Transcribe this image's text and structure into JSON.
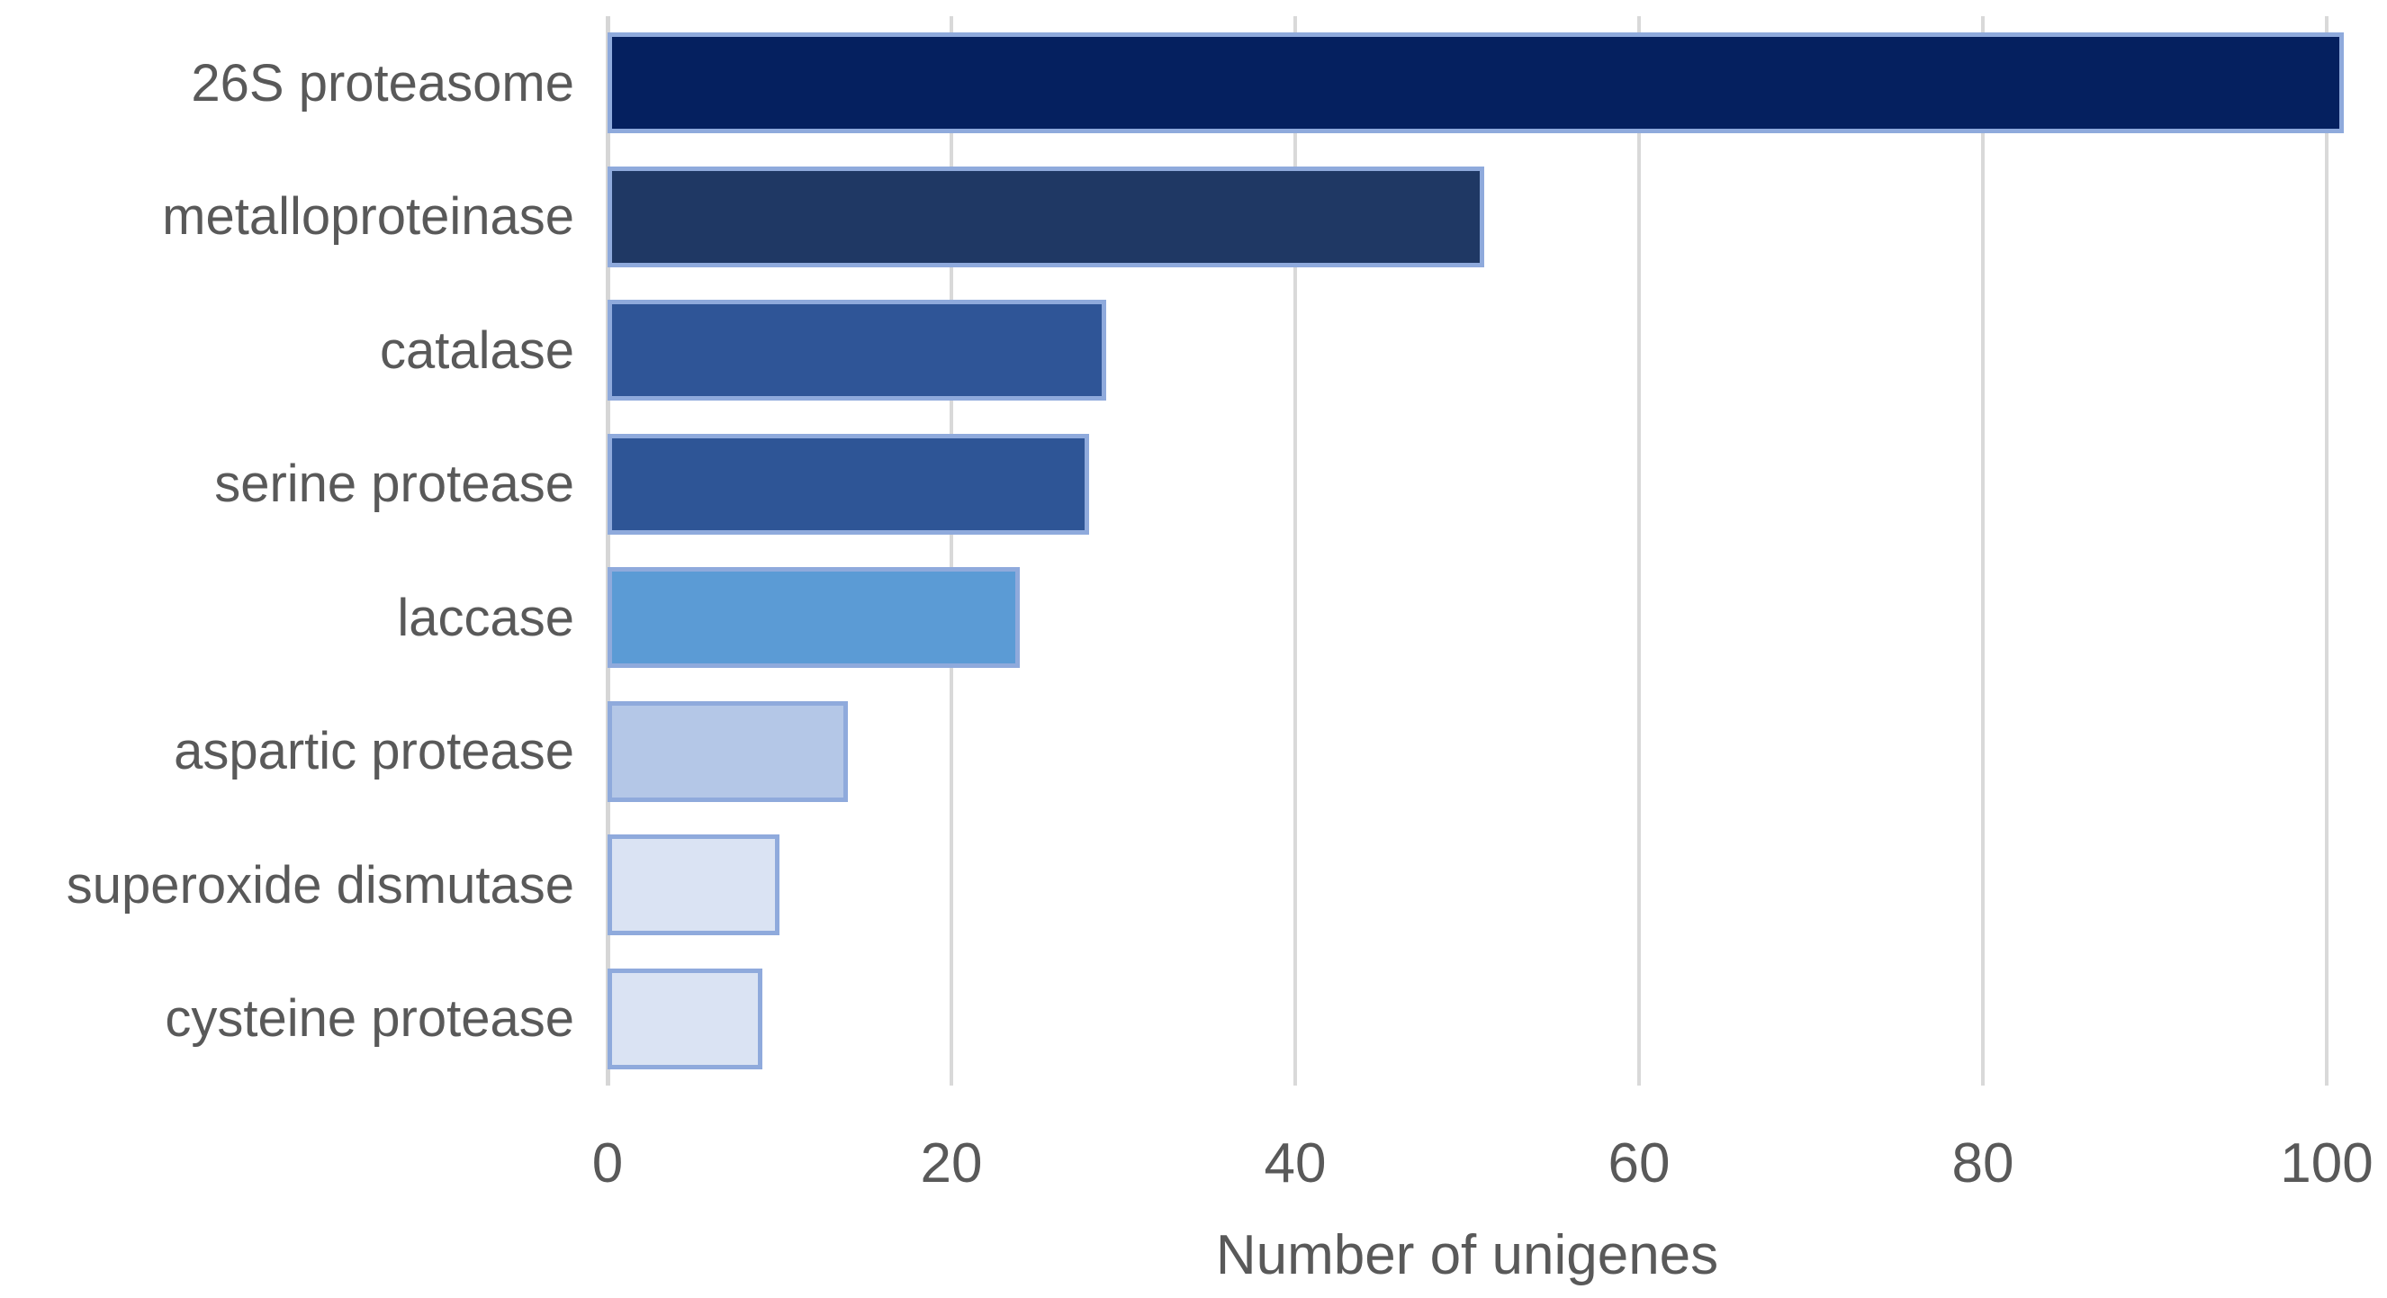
{
  "chart_data": {
    "type": "bar",
    "orientation": "horizontal",
    "title": "",
    "xlabel": "Number of unigenes",
    "ylabel": "",
    "categories": [
      "26S proteasome",
      "metalloproteinase",
      "catalase",
      "serine protease",
      "laccase",
      "aspartic protease",
      "superoxide dismutase",
      "cysteine protease"
    ],
    "values": [
      101,
      51,
      29,
      28,
      24,
      14,
      10,
      9
    ],
    "bar_colors": [
      "#05205F",
      "#1F3864",
      "#2F5597",
      "#2E5596",
      "#5B9BD5",
      "#B4C7E7",
      "#DAE3F3",
      "#DAE3F3"
    ],
    "bar_border_color": "#8FAADC",
    "x_ticks": [
      "0",
      "20",
      "40",
      "60",
      "80",
      "100"
    ],
    "xlim": [
      0,
      100
    ],
    "grid": true,
    "legend": false,
    "gridline_color": "#D9D9D9",
    "axis_line_color": "#D6D6D6",
    "text_color": "#595959",
    "background_color": "#FFFFFF"
  }
}
